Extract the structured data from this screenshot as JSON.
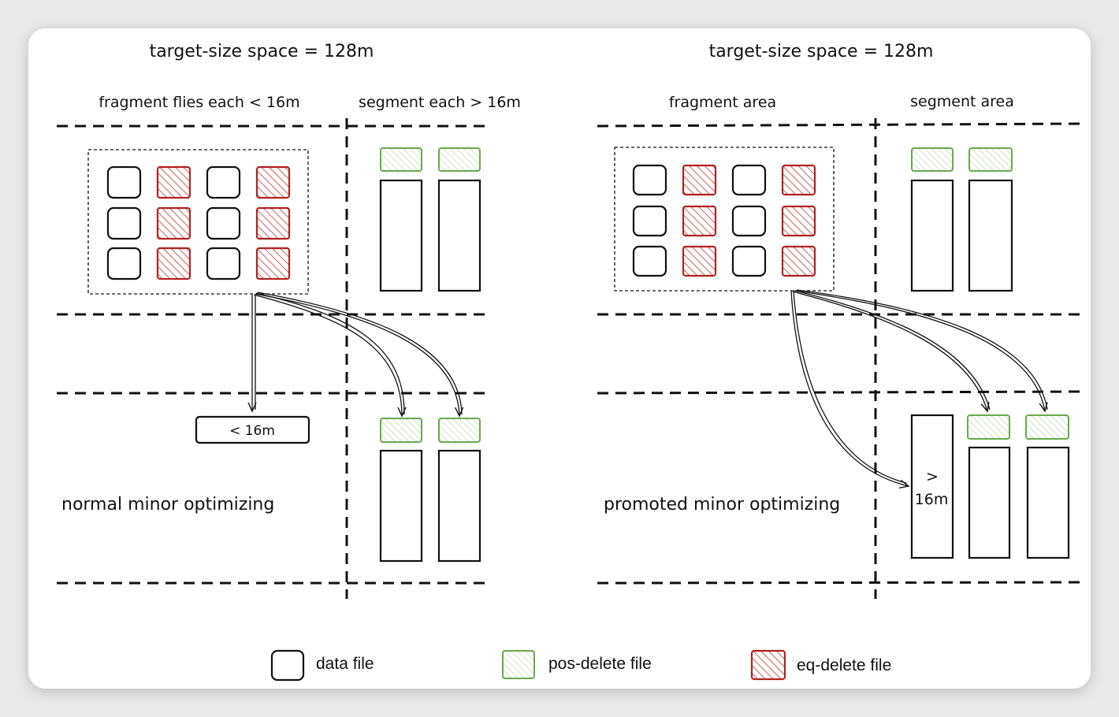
{
  "left_panel": {
    "title": "target-size space = 128m",
    "fragment_label": "fragment flies each < 16m",
    "segment_label": "segment each > 16m",
    "result_label": "< 16m",
    "mode_label": "normal minor optimizing"
  },
  "right_panel": {
    "title": "target-size space = 128m",
    "fragment_label": "fragment area",
    "segment_label": "segment area",
    "result_label_line1": ">",
    "result_label_line2": "16m",
    "mode_label": "promoted minor optimizing"
  },
  "legend": {
    "data_file": "data file",
    "pos_delete_file": "pos-delete file",
    "eq_delete_file": "eq-delete file"
  },
  "colors": {
    "data": "#111111",
    "pos_delete": "#6aa84f",
    "eq_delete": "#b22222"
  }
}
